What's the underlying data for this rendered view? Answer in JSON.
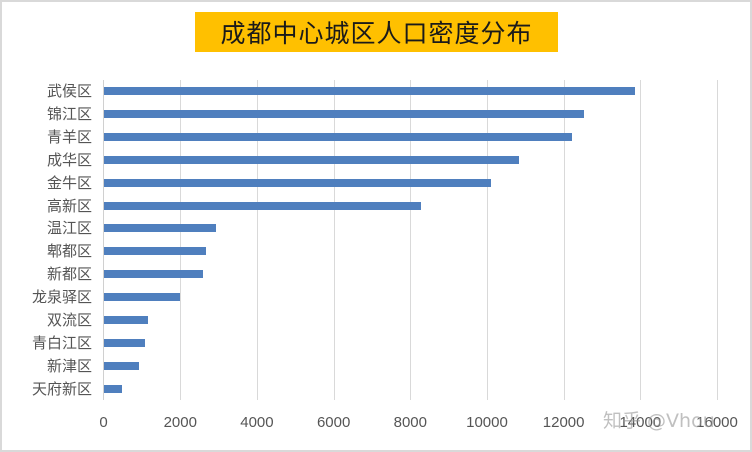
{
  "chart_data": {
    "type": "bar",
    "orientation": "horizontal",
    "title": "成都中心城区人口密度分布",
    "xlabel": "",
    "ylabel": "",
    "xlim": [
      0,
      16000
    ],
    "x_ticks": [
      0,
      2000,
      4000,
      6000,
      8000,
      10000,
      12000,
      14000,
      16000
    ],
    "grid": "vertical",
    "legend": null,
    "categories": [
      "武侯区",
      "锦江区",
      "青羊区",
      "成华区",
      "金牛区",
      "高新区",
      "温江区",
      "郫都区",
      "新都区",
      "龙泉驿区",
      "双流区",
      "青白江区",
      "新津区",
      "天府新区"
    ],
    "values": [
      13840,
      12520,
      12220,
      10820,
      10090,
      8280,
      2930,
      2665,
      2590,
      1995,
      1150,
      1070,
      925,
      470
    ],
    "bar_color": "#4f7fbe",
    "title_background": "#FFC000"
  },
  "watermark": "知乎 @Vhou"
}
